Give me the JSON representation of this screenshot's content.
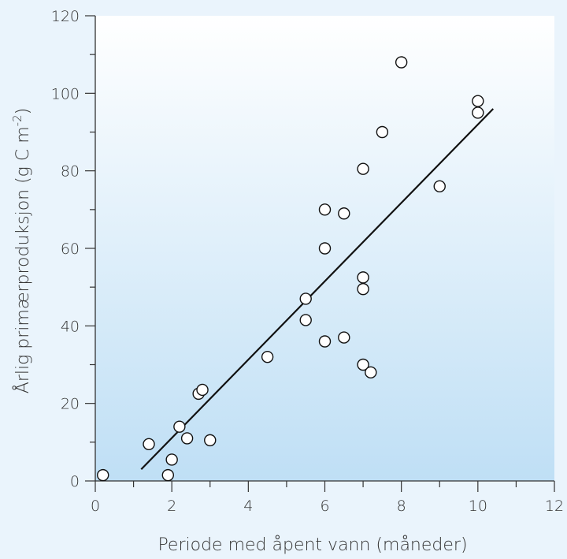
{
  "chart_data": {
    "type": "scatter",
    "title": "",
    "xlabel": "Periode med åpent vann (måneder)",
    "ylabel": "Årlig primærproduksjon (g C m",
    "ylabel_sup": "-2",
    "ylabel_close": ")",
    "xlim": [
      0,
      12
    ],
    "ylim": [
      0,
      120
    ],
    "xticks": [
      0,
      2,
      4,
      6,
      8,
      10,
      12
    ],
    "yticks": [
      0,
      20,
      40,
      60,
      80,
      100,
      120
    ],
    "grid": false,
    "points": [
      {
        "x": 0.2,
        "y": 1.5
      },
      {
        "x": 1.4,
        "y": 9.5
      },
      {
        "x": 1.9,
        "y": 1.5
      },
      {
        "x": 2.0,
        "y": 5.5
      },
      {
        "x": 2.2,
        "y": 14
      },
      {
        "x": 2.4,
        "y": 11
      },
      {
        "x": 2.7,
        "y": 22.5
      },
      {
        "x": 2.8,
        "y": 23.5
      },
      {
        "x": 3.0,
        "y": 10.5
      },
      {
        "x": 4.5,
        "y": 32
      },
      {
        "x": 5.5,
        "y": 47
      },
      {
        "x": 5.5,
        "y": 41.5
      },
      {
        "x": 6.0,
        "y": 70
      },
      {
        "x": 6.0,
        "y": 60
      },
      {
        "x": 6.0,
        "y": 36
      },
      {
        "x": 6.5,
        "y": 69
      },
      {
        "x": 6.5,
        "y": 37
      },
      {
        "x": 7.0,
        "y": 80.5
      },
      {
        "x": 7.0,
        "y": 52.5
      },
      {
        "x": 7.0,
        "y": 49.5
      },
      {
        "x": 7.0,
        "y": 30
      },
      {
        "x": 7.2,
        "y": 28
      },
      {
        "x": 7.5,
        "y": 90
      },
      {
        "x": 8.0,
        "y": 108
      },
      {
        "x": 9.0,
        "y": 76
      },
      {
        "x": 10.0,
        "y": 98
      },
      {
        "x": 10.0,
        "y": 95
      }
    ],
    "trendline": {
      "x1": 1.2,
      "y1": 3,
      "x2": 10.4,
      "y2": 96
    },
    "colors": {
      "background": "#eaf4fc",
      "plot_gradient_top": "#ffffff",
      "plot_gradient_bottom": "#bfdff5",
      "axis": "#333333",
      "marker_fill": "#ffffff",
      "marker_stroke": "#111111"
    }
  }
}
